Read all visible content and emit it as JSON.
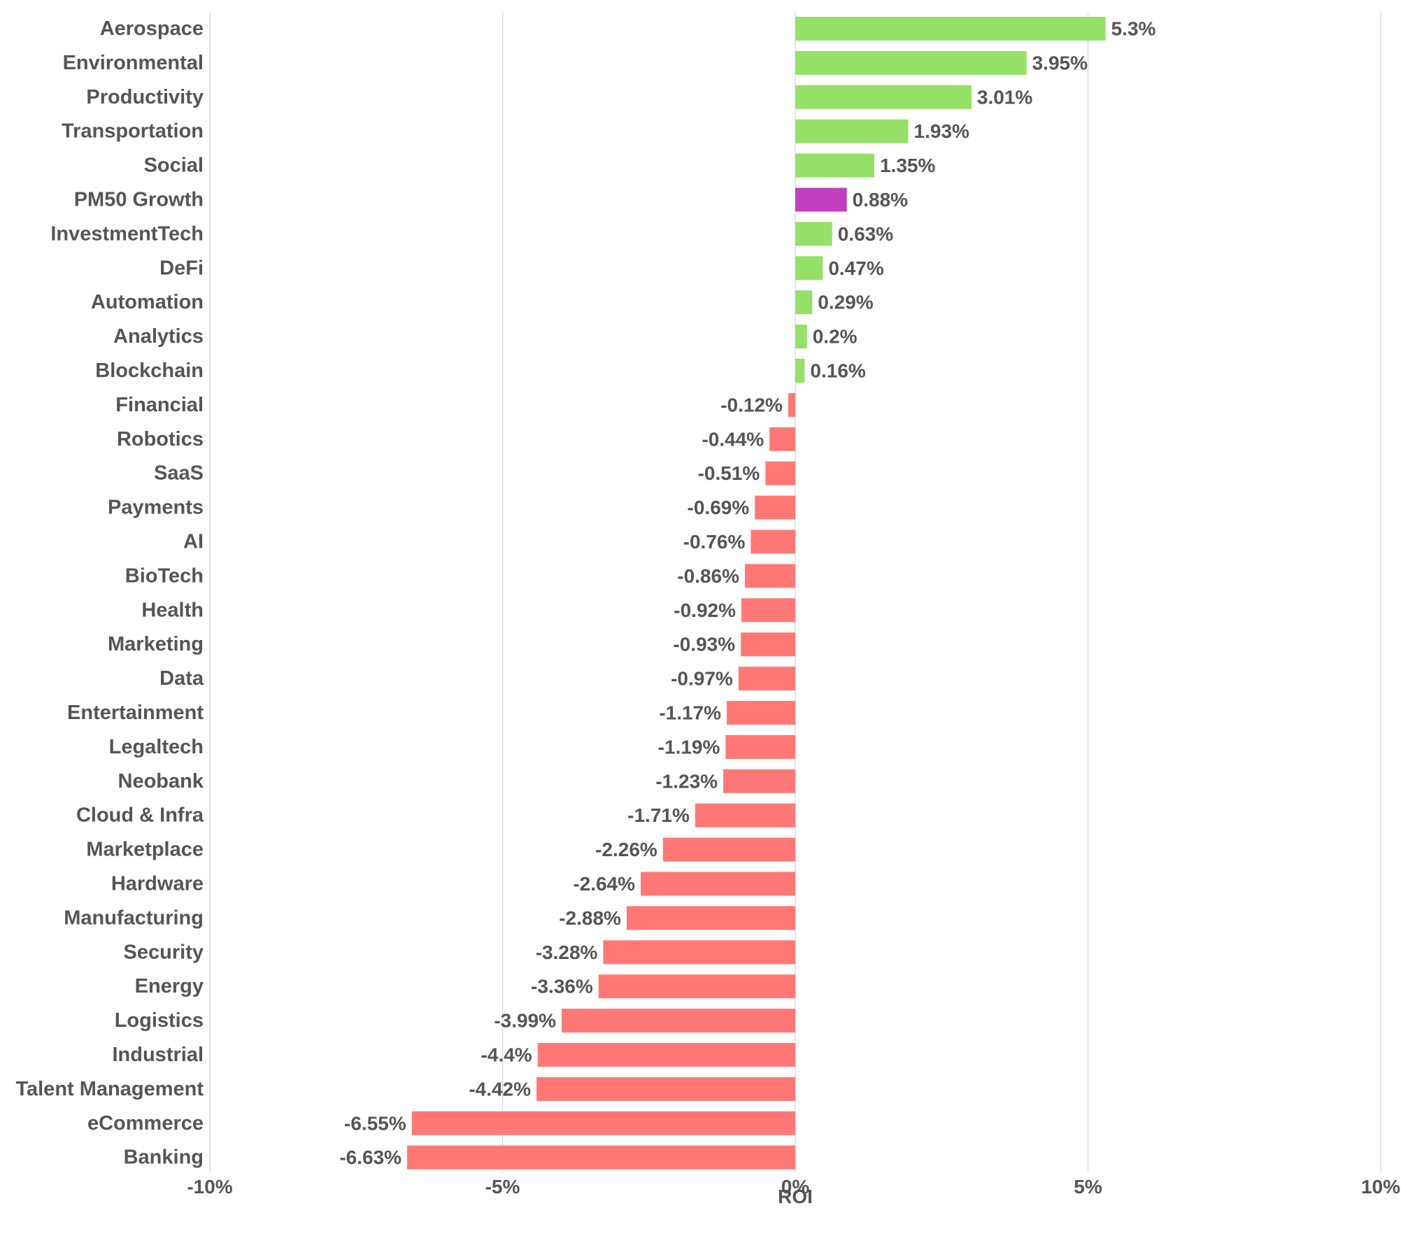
{
  "chart_data": {
    "type": "bar",
    "orientation": "horizontal",
    "title": "",
    "xlabel": "ROI",
    "ylabel": "",
    "xlim": [
      -10,
      10
    ],
    "xticks": [
      -10,
      -5,
      0,
      5,
      10
    ],
    "xtick_labels": [
      "-10%",
      "-5%",
      "0%",
      "5%",
      "10%"
    ],
    "grid": "vertical",
    "colors": {
      "positive": "#95E066",
      "negative": "#FF7875",
      "highlight": "#C040C0",
      "text": "#555555",
      "grid": "#DDDDDD"
    },
    "categories": [
      "Aerospace",
      "Environmental",
      "Productivity",
      "Transportation",
      "Social",
      "PM50 Growth",
      "InvestmentTech",
      "DeFi",
      "Automation",
      "Analytics",
      "Blockchain",
      "Financial",
      "Robotics",
      "SaaS",
      "Payments",
      "AI",
      "BioTech",
      "Health",
      "Marketing",
      "Data",
      "Entertainment",
      "Legaltech",
      "Neobank",
      "Cloud & Infra",
      "Marketplace",
      "Hardware",
      "Manufacturing",
      "Security",
      "Energy",
      "Logistics",
      "Industrial",
      "Talent Management",
      "eCommerce",
      "Banking"
    ],
    "values": [
      5.3,
      3.95,
      3.01,
      1.93,
      1.35,
      0.88,
      0.63,
      0.47,
      0.29,
      0.2,
      0.16,
      -0.12,
      -0.44,
      -0.51,
      -0.69,
      -0.76,
      -0.86,
      -0.92,
      -0.93,
      -0.97,
      -1.17,
      -1.19,
      -1.23,
      -1.71,
      -2.26,
      -2.64,
      -2.88,
      -3.28,
      -3.36,
      -3.99,
      -4.4,
      -4.42,
      -6.55,
      -6.63
    ],
    "value_labels": [
      "5.3%",
      "3.95%",
      "3.01%",
      "1.93%",
      "1.35%",
      "0.88%",
      "0.63%",
      "0.47%",
      "0.29%",
      "0.2%",
      "0.16%",
      "-0.12%",
      "-0.44%",
      "-0.51%",
      "-0.69%",
      "-0.76%",
      "-0.86%",
      "-0.92%",
      "-0.93%",
      "-0.97%",
      "-1.17%",
      "-1.19%",
      "-1.23%",
      "-1.71%",
      "-2.26%",
      "-2.64%",
      "-2.88%",
      "-3.28%",
      "-3.36%",
      "-3.99%",
      "-4.4%",
      "-4.42%",
      "-6.55%",
      "-6.63%"
    ],
    "highlight": "PM50 Growth"
  }
}
